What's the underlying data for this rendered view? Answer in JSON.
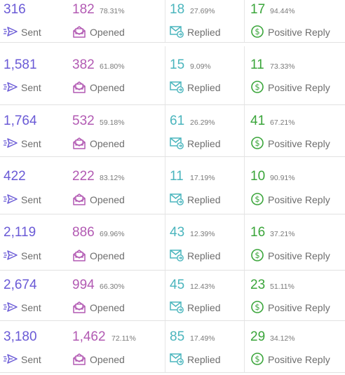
{
  "colors": {
    "sent": "#6a5ad6",
    "opened": "#b25ab3",
    "replied": "#4ab5bd",
    "positive": "#3aa53a",
    "label": "#6e6e6e",
    "percent": "#7a7a7a"
  },
  "labels": {
    "sent": "Sent",
    "opened": "Opened",
    "replied": "Replied",
    "positive": "Positive Reply"
  },
  "icons": {
    "sent": "send-icon",
    "opened": "envelope-open-icon",
    "replied": "envelope-reply-icon",
    "positive": "dollar-circle-icon"
  },
  "rows": [
    {
      "sent": "316",
      "opened": "182",
      "opened_pct": "78.31%",
      "replied": "18",
      "replied_pct": "27.69%",
      "positive": "17",
      "positive_pct": "94.44%"
    },
    {
      "sent": "1,581",
      "opened": "382",
      "opened_pct": "61.80%",
      "replied": "15",
      "replied_pct": "9.09%",
      "positive": "11",
      "positive_pct": "73.33%"
    },
    {
      "sent": "1,764",
      "opened": "532",
      "opened_pct": "59.18%",
      "replied": "61",
      "replied_pct": "26.29%",
      "positive": "41",
      "positive_pct": "67.21%"
    },
    {
      "sent": "422",
      "opened": "222",
      "opened_pct": "83.12%",
      "replied": "11",
      "replied_pct": "17.19%",
      "positive": "10",
      "positive_pct": "90.91%"
    },
    {
      "sent": "2,119",
      "opened": "886",
      "opened_pct": "69.96%",
      "replied": "43",
      "replied_pct": "12.39%",
      "positive": "16",
      "positive_pct": "37.21%"
    },
    {
      "sent": "2,674",
      "opened": "994",
      "opened_pct": "66.30%",
      "replied": "45",
      "replied_pct": "12.43%",
      "positive": "23",
      "positive_pct": "51.11%"
    },
    {
      "sent": "3,180",
      "opened": "1,462",
      "opened_pct": "72.11%",
      "replied": "85",
      "replied_pct": "17.49%",
      "positive": "29",
      "positive_pct": "34.12%"
    }
  ]
}
